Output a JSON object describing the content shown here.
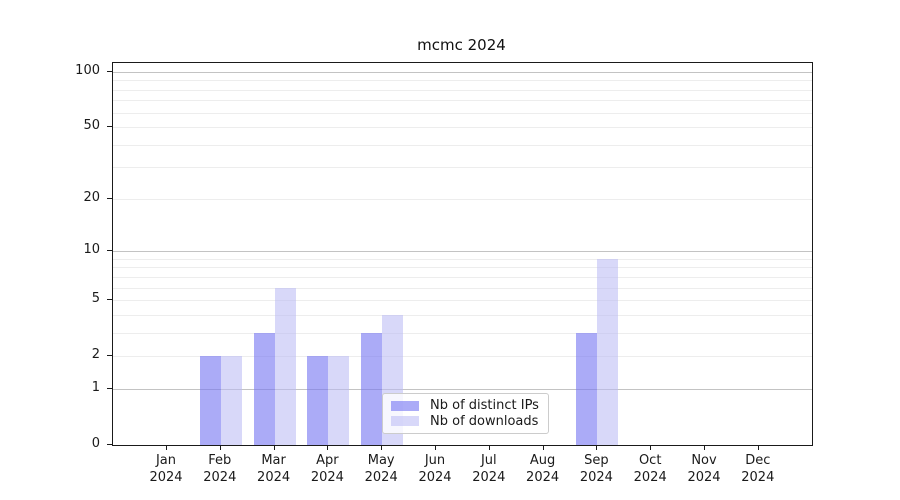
{
  "chart_data": {
    "type": "bar",
    "title": "mcmc 2024",
    "categories": [
      "Jan 2024",
      "Feb 2024",
      "Mar 2024",
      "Apr 2024",
      "May 2024",
      "Jun 2024",
      "Jul 2024",
      "Aug 2024",
      "Sep 2024",
      "Oct 2024",
      "Nov 2024",
      "Dec 2024"
    ],
    "series": [
      {
        "name": "Nb of distinct IPs",
        "color": "rgba(119,119,242,0.62)",
        "values": [
          0,
          2,
          3,
          2,
          3,
          0,
          0,
          0,
          3,
          0,
          0,
          0
        ]
      },
      {
        "name": "Nb of downloads",
        "color": "rgba(186,186,244,0.57)",
        "values": [
          0,
          2,
          6,
          2,
          4,
          0,
          0,
          0,
          9,
          0,
          0,
          0
        ]
      }
    ],
    "xlabel": "",
    "ylabel": "",
    "y_axis": {
      "scale": "log10(1+x)",
      "ticks": [
        0,
        1,
        2,
        5,
        10,
        20,
        50,
        100
      ],
      "range": [
        0,
        112
      ],
      "gridlines_major": [
        1,
        10,
        100
      ],
      "gridlines_minor": [
        2,
        3,
        4,
        5,
        6,
        7,
        8,
        9,
        20,
        30,
        40,
        50,
        60,
        70,
        80,
        90
      ]
    },
    "legend": {
      "position": "lower center"
    }
  }
}
